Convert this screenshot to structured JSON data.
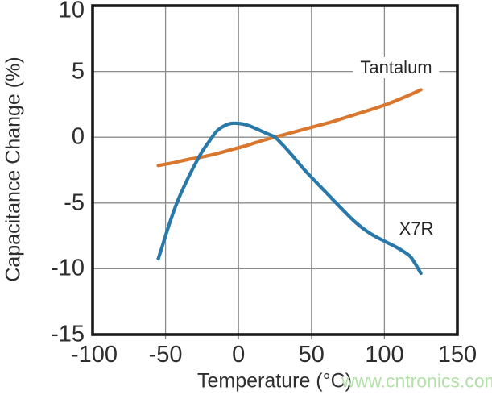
{
  "watermark": {
    "text": "www.cntronics.com",
    "color": "#b4e0aa"
  },
  "chart_data": {
    "type": "line",
    "title": "",
    "xlabel": "Temperature (°C)",
    "ylabel": "Capacitance Change (%)",
    "xlim": [
      -100,
      150
    ],
    "ylim": [
      -15,
      10
    ],
    "grid": true,
    "grid_color": "#8c8c8c",
    "frame_color": "#1a1a1a",
    "legend_position": "inline-annotations",
    "x_ticks": [
      -100,
      -50,
      0,
      50,
      100,
      150
    ],
    "x_tick_labels": [
      "-100",
      "-50",
      "0",
      "50",
      "100",
      "150"
    ],
    "y_ticks": [
      10,
      5,
      0,
      -5,
      -10,
      -15
    ],
    "y_tick_labels": [
      "10",
      "5",
      "0",
      "-5",
      "-10",
      "-15"
    ],
    "x_gridlines": [
      -50,
      0,
      50,
      100
    ],
    "y_gridlines": [
      5,
      0,
      -5,
      -10
    ],
    "series": [
      {
        "name": "tantalum",
        "label": "Tantalum",
        "color": "#d9772f",
        "x": [
          -55,
          -45,
          -35,
          -25,
          -15,
          -5,
          5,
          15,
          25,
          35,
          45,
          55,
          65,
          75,
          85,
          95,
          105,
          115,
          125
        ],
        "y": [
          -2.15,
          -1.95,
          -1.7,
          -1.5,
          -1.25,
          -0.95,
          -0.65,
          -0.3,
          0,
          0.3,
          0.6,
          0.9,
          1.2,
          1.55,
          1.9,
          2.25,
          2.65,
          3.1,
          3.6
        ]
      },
      {
        "name": "x7r",
        "label": "X7R",
        "color": "#2878aa",
        "x": [
          -55,
          -52,
          -48,
          -44,
          -40,
          -35,
          -30,
          -25,
          -20,
          -15,
          -10,
          -5,
          0,
          5,
          10,
          15,
          20,
          25,
          30,
          35,
          40,
          45,
          50,
          60,
          70,
          80,
          90,
          100,
          108,
          114,
          118,
          121,
          125
        ],
        "y": [
          -9.25,
          -8.2,
          -6.8,
          -5.5,
          -4.4,
          -3.2,
          -2.1,
          -1.1,
          -0.3,
          0.45,
          0.85,
          1.05,
          1.05,
          0.95,
          0.75,
          0.5,
          0.25,
          0,
          -0.55,
          -1.15,
          -1.8,
          -2.45,
          -3.05,
          -4.2,
          -5.35,
          -6.45,
          -7.3,
          -7.9,
          -8.35,
          -8.75,
          -9.1,
          -9.6,
          -10.35
        ]
      }
    ]
  }
}
